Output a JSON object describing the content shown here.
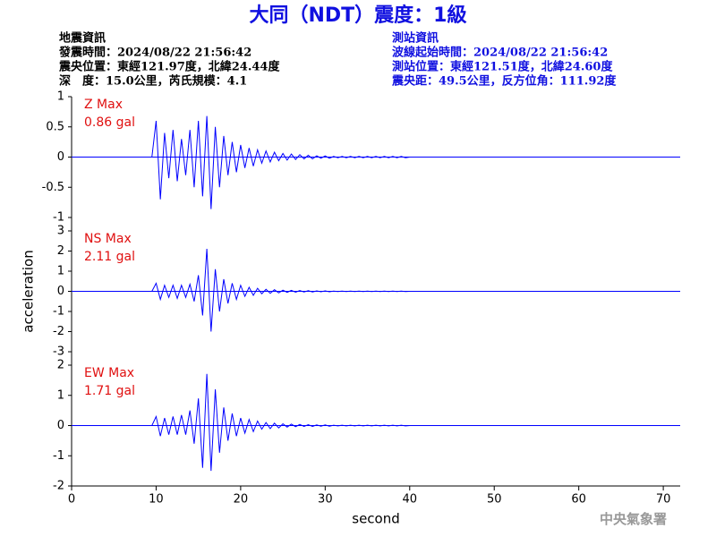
{
  "header": {
    "title": "大同（NDT）震度：1級",
    "left": [
      "地震資訊",
      "發震時間：2024/08/22 21:56:42",
      "震央位置：東經121.97度，北緯24.44度",
      "深　度：15.0公里，芮氏規模：4.1"
    ],
    "right": [
      "測站資訊",
      "波線起始時間：2024/08/22 21:56:42",
      "測站位置：東經121.51度，北緯24.60度",
      "震央距：49.5公里，反方位角：111.92度"
    ]
  },
  "footer": "中央氣象署",
  "chart_data": [
    {
      "type": "line",
      "annotation": [
        "Z Max",
        "0.86 gal"
      ],
      "xlim": [
        0,
        72
      ],
      "ylim": [
        -1,
        1
      ],
      "yticks": [
        -1,
        -0.5,
        0,
        0.5,
        1
      ],
      "x": [
        9.5,
        10,
        10.5,
        11,
        11.5,
        12,
        12.5,
        13,
        13.5,
        14,
        14.5,
        15,
        15.5,
        16,
        16.5,
        17,
        17.5,
        18,
        18.5,
        19,
        19.5,
        20,
        20.5,
        21,
        21.5,
        22,
        22.5,
        23,
        23.5,
        24,
        24.5,
        25,
        25.5,
        26,
        26.5,
        27,
        27.5,
        28,
        28.5,
        29,
        29.5,
        30,
        30.5,
        31,
        31.5,
        32,
        32.5,
        33,
        33.5,
        34,
        34.5,
        35,
        35.5,
        36,
        36.5,
        37,
        37.5,
        38,
        38.5,
        39,
        39.5,
        40,
        72
      ],
      "series": [
        {
          "color": "#0000ff",
          "values": [
            0,
            0.6,
            -0.7,
            0.4,
            -0.35,
            0.45,
            -0.4,
            0.3,
            -0.3,
            0.45,
            -0.5,
            0.6,
            -0.65,
            0.68,
            -0.86,
            0.5,
            -0.5,
            0.35,
            -0.3,
            0.25,
            -0.25,
            0.2,
            -0.18,
            0.15,
            -0.15,
            0.12,
            -0.1,
            0.1,
            -0.08,
            0.08,
            -0.06,
            0.06,
            -0.05,
            0.05,
            -0.04,
            0.04,
            -0.03,
            0.03,
            -0.03,
            0.02,
            -0.02,
            0.02,
            -0.02,
            0.01,
            -0.01,
            0.01,
            -0.01,
            0.01,
            -0.01,
            0.01,
            -0.01,
            0.01,
            -0.01,
            0.01,
            -0.01,
            0.01,
            -0.01,
            0.01,
            -0.01,
            0.01,
            -0.01,
            0,
            0
          ]
        }
      ]
    },
    {
      "type": "line",
      "annotation": [
        "NS Max",
        "2.11 gal"
      ],
      "y_label": "acceleration",
      "xlim": [
        0,
        72
      ],
      "ylim": [
        -3,
        3
      ],
      "yticks": [
        -3,
        -2,
        -1,
        0,
        1,
        2,
        3
      ],
      "x": [
        9.5,
        10,
        10.5,
        11,
        11.5,
        12,
        12.5,
        13,
        13.5,
        14,
        14.5,
        15,
        15.5,
        16,
        16.5,
        17,
        17.5,
        18,
        18.5,
        19,
        19.5,
        20,
        20.5,
        21,
        21.5,
        22,
        22.5,
        23,
        23.5,
        24,
        24.5,
        25,
        25.5,
        26,
        26.5,
        27,
        27.5,
        28,
        28.5,
        29,
        29.5,
        30,
        30.5,
        31,
        31.5,
        32,
        32.5,
        33,
        33.5,
        34,
        34.5,
        35,
        35.5,
        36,
        36.5,
        37,
        37.5,
        38,
        38.5,
        39,
        39.5,
        40,
        72
      ],
      "series": [
        {
          "color": "#0000ff",
          "values": [
            0,
            0.4,
            -0.4,
            0.3,
            -0.3,
            0.3,
            -0.35,
            0.3,
            -0.3,
            0.35,
            -0.5,
            0.8,
            -1.2,
            2.11,
            -2.0,
            1.1,
            -1.0,
            0.6,
            -0.6,
            0.4,
            -0.4,
            0.3,
            -0.25,
            0.2,
            -0.2,
            0.15,
            -0.12,
            0.1,
            -0.1,
            0.08,
            -0.08,
            0.06,
            -0.05,
            0.05,
            -0.04,
            0.04,
            -0.03,
            0.03,
            -0.03,
            0.02,
            -0.02,
            0.02,
            -0.02,
            0.01,
            -0.01,
            0.01,
            -0.01,
            0.01,
            -0.01,
            0.01,
            -0.01,
            0.01,
            -0.01,
            0.01,
            -0.01,
            0.01,
            -0.01,
            0.01,
            -0.01,
            0.01,
            -0.01,
            0,
            0
          ]
        }
      ]
    },
    {
      "type": "line",
      "annotation": [
        "EW Max",
        "1.71 gal"
      ],
      "x_label": "second",
      "xlim": [
        0,
        72
      ],
      "xticks": [
        0,
        10,
        20,
        30,
        40,
        50,
        60,
        70
      ],
      "ylim": [
        -2,
        2
      ],
      "yticks": [
        -2,
        -1,
        0,
        1,
        2
      ],
      "x": [
        9.5,
        10,
        10.5,
        11,
        11.5,
        12,
        12.5,
        13,
        13.5,
        14,
        14.5,
        15,
        15.5,
        16,
        16.5,
        17,
        17.5,
        18,
        18.5,
        19,
        19.5,
        20,
        20.5,
        21,
        21.5,
        22,
        22.5,
        23,
        23.5,
        24,
        24.5,
        25,
        25.5,
        26,
        26.5,
        27,
        27.5,
        28,
        28.5,
        29,
        29.5,
        30,
        30.5,
        31,
        31.5,
        32,
        32.5,
        33,
        33.5,
        34,
        34.5,
        35,
        35.5,
        36,
        36.5,
        37,
        37.5,
        38,
        38.5,
        39,
        39.5,
        40,
        72
      ],
      "series": [
        {
          "color": "#0000ff",
          "values": [
            0,
            0.3,
            -0.35,
            0.25,
            -0.3,
            0.3,
            -0.3,
            0.35,
            -0.3,
            0.5,
            -0.6,
            0.9,
            -1.4,
            1.71,
            -1.5,
            1.2,
            -0.9,
            0.6,
            -0.5,
            0.4,
            -0.35,
            0.25,
            -0.25,
            0.2,
            -0.2,
            0.15,
            -0.12,
            0.1,
            -0.1,
            0.08,
            -0.08,
            0.06,
            -0.05,
            0.05,
            -0.04,
            0.04,
            -0.03,
            0.03,
            -0.03,
            0.02,
            -0.02,
            0.02,
            -0.02,
            0.01,
            -0.01,
            0.01,
            -0.01,
            0.01,
            -0.01,
            0.01,
            -0.01,
            0.01,
            -0.01,
            0.01,
            -0.01,
            0.01,
            -0.01,
            0.01,
            -0.01,
            0.01,
            -0.01,
            0,
            0
          ]
        }
      ]
    }
  ]
}
